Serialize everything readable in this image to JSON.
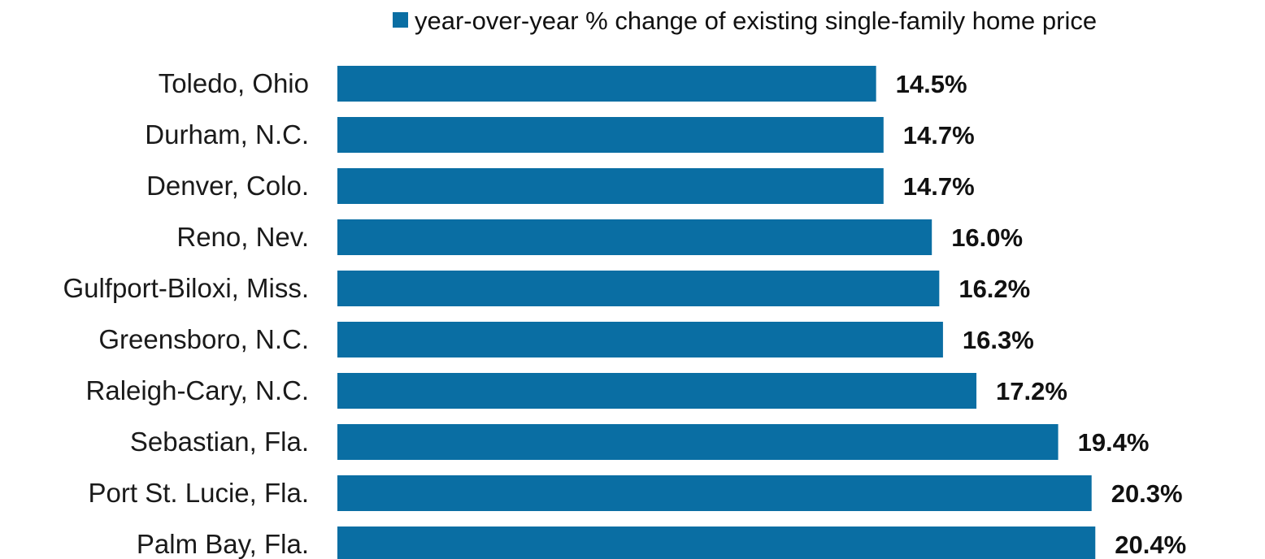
{
  "chart_data": {
    "type": "bar",
    "orientation": "horizontal",
    "legend": {
      "label": "year-over-year % change of existing single-family home price",
      "placement": "top-right"
    },
    "series": [
      {
        "name": "year-over-year % change of existing single-family home price",
        "color": "#0A6EA3"
      }
    ],
    "categories": [
      "Toledo, Ohio",
      "Durham, N.C.",
      "Denver, Colo.",
      "Reno, Nev.",
      "Gulfport-Biloxi, Miss.",
      "Greensboro, N.C.",
      "Raleigh-Cary, N.C.",
      "Sebastian, Fla.",
      "Port St. Lucie, Fla.",
      "Palm Bay, Fla."
    ],
    "values": [
      14.5,
      14.7,
      14.7,
      16.0,
      16.2,
      16.3,
      17.2,
      19.4,
      20.3,
      20.4
    ],
    "value_labels": [
      "14.5%",
      "14.7%",
      "14.7%",
      "16.0%",
      "16.2%",
      "16.3%",
      "17.2%",
      "19.4%",
      "20.3%",
      "20.4%"
    ],
    "xlim": [
      0,
      22.5
    ],
    "grid": false
  }
}
